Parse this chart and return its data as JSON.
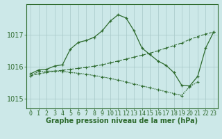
{
  "title": "Graphe pression niveau de la mer (hPa)",
  "bg_color": "#cce8e8",
  "line_color": "#2d6a2d",
  "grid_color": "#a8c8c8",
  "hours": [
    0,
    1,
    2,
    3,
    4,
    5,
    6,
    7,
    8,
    9,
    10,
    11,
    12,
    13,
    14,
    15,
    16,
    17,
    18,
    19,
    20,
    21,
    22,
    23
  ],
  "line_peak": [
    1015.78,
    1015.9,
    1015.92,
    1016.02,
    1016.06,
    1016.55,
    1016.76,
    1016.82,
    1016.92,
    1017.12,
    1017.42,
    1017.62,
    1017.52,
    1017.12,
    1016.58,
    1016.38,
    1016.18,
    1016.05,
    1015.82,
    1015.42,
    1015.4,
    1015.7,
    1016.58,
    1017.08
  ],
  "line_diag": [
    1015.72,
    1015.78,
    1015.82,
    1015.86,
    1015.89,
    1015.92,
    1015.95,
    1015.98,
    1016.02,
    1016.06,
    1016.12,
    1016.18,
    1016.24,
    1016.3,
    1016.36,
    1016.42,
    1016.5,
    1016.58,
    1016.66,
    1016.74,
    1016.85,
    1016.94,
    1017.02,
    1017.08
  ],
  "line_flat1": [
    1015.72,
    1015.85,
    1015.86,
    1015.86,
    1015.85,
    1015.82,
    1015.79,
    1015.76,
    1015.72,
    1015.68,
    1015.63,
    1015.58,
    1015.52,
    1015.46,
    1015.4,
    1015.34,
    1015.28,
    1015.22,
    1015.16,
    1015.1,
    1015.38,
    1015.52,
    null,
    null
  ],
  "line_flat2": [
    1015.72,
    1015.85,
    1015.86,
    1015.87,
    1015.86,
    1015.83,
    1015.8,
    1015.77,
    1015.73,
    1015.69,
    1015.64,
    1015.59,
    1015.53,
    1015.47,
    1015.41,
    1015.35,
    1015.29,
    1015.23,
    1015.17,
    1015.11,
    1015.39,
    1015.53,
    null,
    null
  ],
  "ylim": [
    1014.7,
    1017.95
  ],
  "yticks": [
    1015,
    1016,
    1017
  ],
  "xlim": [
    -0.5,
    23.5
  ],
  "tick_fontsize": 6,
  "label_fontsize": 7
}
